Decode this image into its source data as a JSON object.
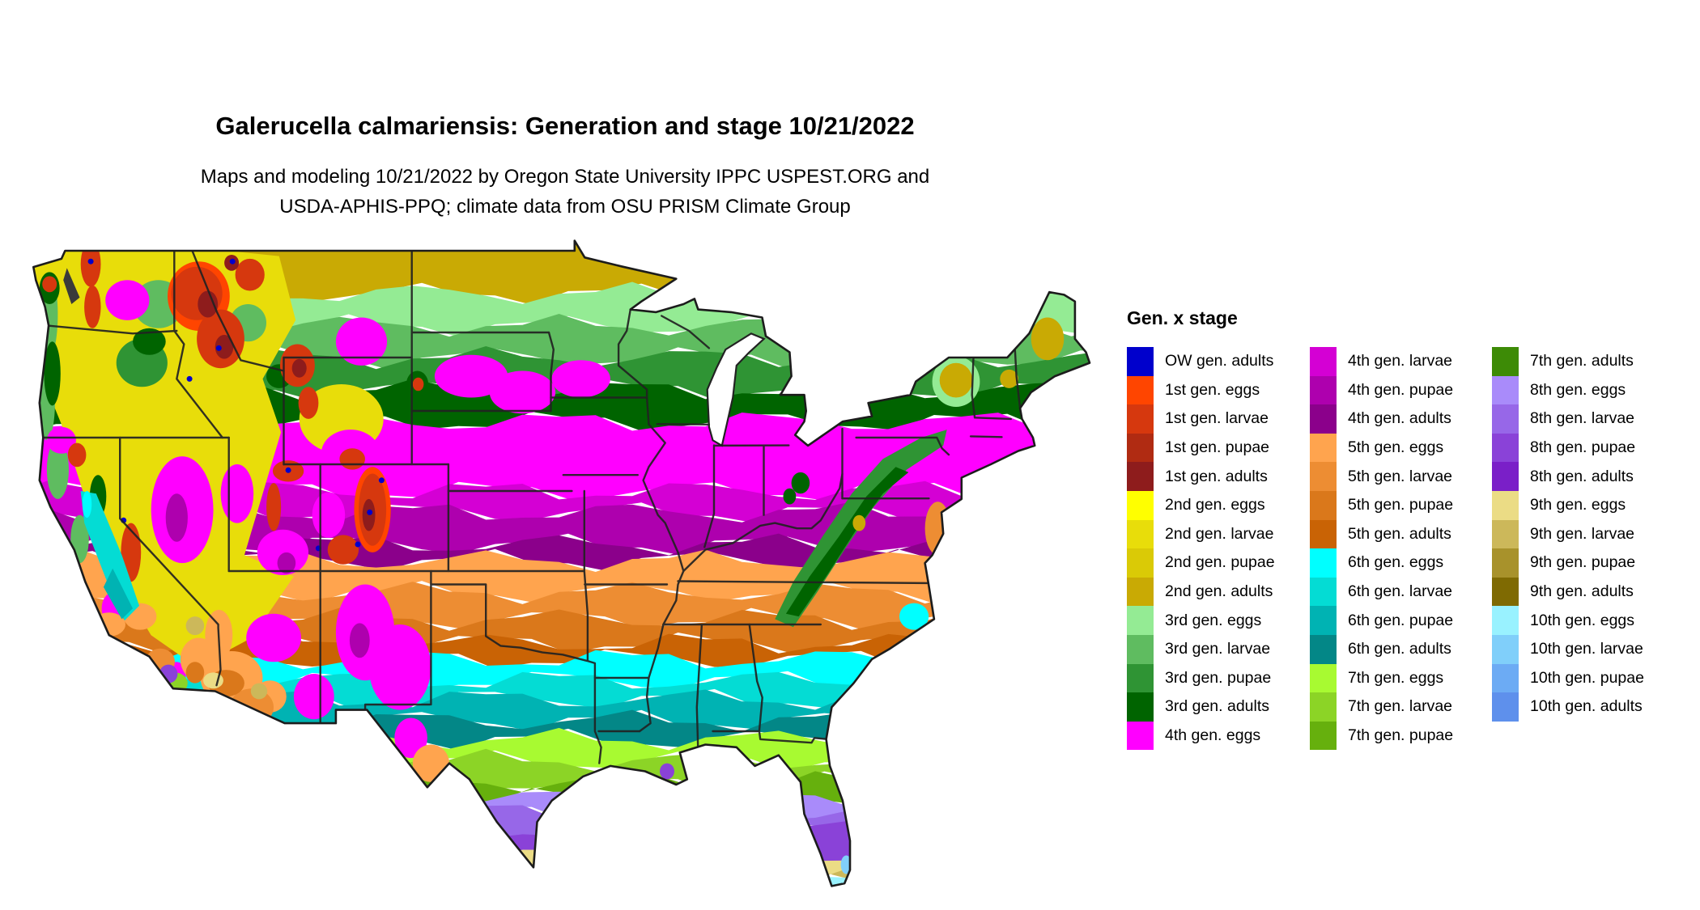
{
  "header": {
    "title": "Galerucella calmariensis: Generation and stage 10/21/2022",
    "subtitle_line1": "Maps and modeling 10/21/2022 by Oregon State University IPPC USPEST.ORG and",
    "subtitle_line2": "USDA-APHIS-PPQ; climate data from OSU PRISM Climate Group"
  },
  "map": {
    "region": "Continental United States",
    "description": "Raster map colored by Galerucella calmariensis generation and life stage on 10/21/2022",
    "border_color": "#222222",
    "water_color": "#ffffff",
    "puget_sound_color": "#3a3a3a"
  },
  "legend": {
    "title": "Gen. x stage",
    "columns": [
      14,
      14,
      13
    ],
    "entries": [
      {
        "label": "OW gen. adults",
        "color": "#0000CC"
      },
      {
        "label": "1st gen. eggs",
        "color": "#FF4500"
      },
      {
        "label": "1st gen. larvae",
        "color": "#D6380E"
      },
      {
        "label": "1st gen. pupae",
        "color": "#B02B12"
      },
      {
        "label": "1st gen. adults",
        "color": "#8E1C1C"
      },
      {
        "label": "2nd gen. eggs",
        "color": "#FFFF00"
      },
      {
        "label": "2nd gen. larvae",
        "color": "#E8DD0A"
      },
      {
        "label": "2nd gen. pupae",
        "color": "#DACA06"
      },
      {
        "label": "2nd gen. adults",
        "color": "#C9AA04"
      },
      {
        "label": "3rd gen. eggs",
        "color": "#94EB94"
      },
      {
        "label": "3rd gen. larvae",
        "color": "#5FBC60"
      },
      {
        "label": "3rd gen. pupae",
        "color": "#2F9434"
      },
      {
        "label": "3rd gen. adults",
        "color": "#006400"
      },
      {
        "label": "4th gen. eggs",
        "color": "#FF00FF"
      },
      {
        "label": "4th gen. larvae",
        "color": "#D400D4"
      },
      {
        "label": "4th gen. pupae",
        "color": "#AE00AE"
      },
      {
        "label": "4th gen. adults",
        "color": "#8B008B"
      },
      {
        "label": "5th gen. eggs",
        "color": "#FFA44E"
      },
      {
        "label": "5th gen. larvae",
        "color": "#ED8D33"
      },
      {
        "label": "5th gen. pupae",
        "color": "#DA781B"
      },
      {
        "label": "5th gen. adults",
        "color": "#C96305"
      },
      {
        "label": "6th gen. eggs",
        "color": "#00FFFF"
      },
      {
        "label": "6th gen. larvae",
        "color": "#04DCD4"
      },
      {
        "label": "6th gen. pupae",
        "color": "#00B3B3"
      },
      {
        "label": "6th gen. adults",
        "color": "#038787"
      },
      {
        "label": "7th gen. eggs",
        "color": "#A8FA31"
      },
      {
        "label": "7th gen. larvae",
        "color": "#8CD426"
      },
      {
        "label": "7th gen. pupae",
        "color": "#66B00D"
      },
      {
        "label": "7th gen. adults",
        "color": "#3D8B06"
      },
      {
        "label": "8th gen. eggs",
        "color": "#A98BFA"
      },
      {
        "label": "8th gen. larvae",
        "color": "#9767E8"
      },
      {
        "label": "8th gen. pupae",
        "color": "#8A42D8"
      },
      {
        "label": "8th gen. adults",
        "color": "#7A1FC8"
      },
      {
        "label": "9th gen. eggs",
        "color": "#EBDC85"
      },
      {
        "label": "9th gen. larvae",
        "color": "#CCB85A"
      },
      {
        "label": "9th gen. pupae",
        "color": "#A8922B"
      },
      {
        "label": "9th gen. adults",
        "color": "#7F6A02"
      },
      {
        "label": "10th gen. eggs",
        "color": "#99F2FF"
      },
      {
        "label": "10th gen. larvae",
        "color": "#80CFFA"
      },
      {
        "label": "10th gen. pupae",
        "color": "#6CABF4"
      },
      {
        "label": "10th gen. adults",
        "color": "#5E90EC"
      }
    ]
  }
}
